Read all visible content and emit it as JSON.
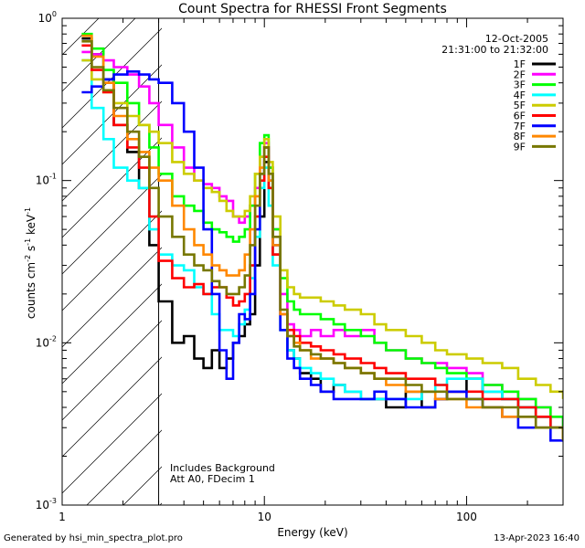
{
  "chart_data": {
    "type": "line",
    "title": "Count Spectra for RHESSI Front Segments",
    "xlabel": "Energy (keV)",
    "ylabel_parts": {
      "base": "counts cm",
      "exp1": "-2",
      "mid": " s",
      "exp2": "-1",
      "end": " keV",
      "exp3": "-1"
    },
    "xscale": "log",
    "yscale": "log",
    "xlim": [
      1,
      300
    ],
    "ylim": [
      0.001,
      1
    ],
    "x_ticks": [
      {
        "v": 1,
        "label": "1"
      },
      {
        "v": 10,
        "label": "10"
      },
      {
        "v": 100,
        "label": "100"
      }
    ],
    "y_ticks": [
      {
        "v": 1,
        "base": "10",
        "exp": "0"
      },
      {
        "v": 0.1,
        "base": "10",
        "exp": "-1"
      },
      {
        "v": 0.01,
        "base": "10",
        "exp": "-2"
      },
      {
        "v": 0.001,
        "base": "10",
        "exp": "-3"
      }
    ],
    "hatched_region_keV": [
      1,
      3
    ],
    "date": "12-Oct-2005",
    "time_range": "21:31:00 to 21:32:00",
    "annotation": [
      "Includes Background",
      "Att A0, FDecim 1"
    ],
    "legend_position": "top-right",
    "energy_keV": [
      1.25,
      1.4,
      1.6,
      1.8,
      2.1,
      2.4,
      2.7,
      3.0,
      3.5,
      4.0,
      4.5,
      5.0,
      5.5,
      6.0,
      6.5,
      7.0,
      7.5,
      8.0,
      8.5,
      9.0,
      9.5,
      10.0,
      10.5,
      11.0,
      12,
      13,
      14,
      15,
      17,
      19,
      22,
      25,
      30,
      35,
      40,
      50,
      60,
      70,
      80,
      100,
      120,
      150,
      180,
      220,
      260,
      300
    ],
    "series": [
      {
        "name": "1F",
        "color": "#000000",
        "values": [
          0.75,
          0.6,
          0.42,
          0.22,
          0.15,
          0.09,
          0.04,
          0.018,
          0.01,
          0.011,
          0.008,
          0.007,
          0.009,
          0.007,
          0.008,
          0.01,
          0.011,
          0.013,
          0.015,
          0.03,
          0.06,
          0.13,
          0.09,
          0.035,
          0.012,
          0.009,
          0.008,
          0.0065,
          0.006,
          0.005,
          0.0055,
          0.005,
          0.0045,
          0.0045,
          0.004,
          0.005,
          0.004,
          0.0045,
          0.005,
          0.006,
          0.005,
          0.0045,
          0.004,
          0.0035,
          0.003,
          0.0025
        ]
      },
      {
        "name": "2F",
        "color": "#ff00ff",
        "values": [
          0.62,
          0.6,
          0.55,
          0.5,
          0.45,
          0.38,
          0.3,
          0.22,
          0.16,
          0.12,
          0.1,
          0.095,
          0.09,
          0.08,
          0.075,
          0.06,
          0.055,
          0.06,
          0.07,
          0.09,
          0.14,
          0.17,
          0.12,
          0.05,
          0.02,
          0.013,
          0.012,
          0.011,
          0.012,
          0.011,
          0.012,
          0.011,
          0.012,
          0.01,
          0.009,
          0.008,
          0.0075,
          0.0075,
          0.007,
          0.0065,
          0.0055,
          0.005,
          0.0045,
          0.004,
          0.0035,
          0.003
        ]
      },
      {
        "name": "3F",
        "color": "#00ff00",
        "values": [
          0.8,
          0.65,
          0.48,
          0.4,
          0.3,
          0.22,
          0.16,
          0.11,
          0.08,
          0.07,
          0.065,
          0.055,
          0.05,
          0.048,
          0.045,
          0.042,
          0.045,
          0.05,
          0.07,
          0.11,
          0.17,
          0.19,
          0.12,
          0.05,
          0.025,
          0.018,
          0.016,
          0.015,
          0.015,
          0.014,
          0.013,
          0.012,
          0.011,
          0.01,
          0.009,
          0.008,
          0.0075,
          0.007,
          0.0065,
          0.006,
          0.0055,
          0.005,
          0.0045,
          0.004,
          0.0035,
          0.003
        ]
      },
      {
        "name": "4F",
        "color": "#00ffff",
        "values": [
          0.55,
          0.28,
          0.18,
          0.12,
          0.1,
          0.09,
          0.05,
          0.035,
          0.03,
          0.028,
          0.022,
          0.02,
          0.015,
          0.012,
          0.012,
          0.011,
          0.013,
          0.016,
          0.025,
          0.045,
          0.09,
          0.12,
          0.07,
          0.03,
          0.012,
          0.009,
          0.008,
          0.007,
          0.0065,
          0.006,
          0.0055,
          0.005,
          0.0045,
          0.0045,
          0.0045,
          0.0045,
          0.005,
          0.0055,
          0.006,
          0.006,
          0.005,
          0.0045,
          0.004,
          0.0035,
          0.003,
          0.0025
        ]
      },
      {
        "name": "5F",
        "color": "#cccc00",
        "values": [
          0.55,
          0.42,
          0.35,
          0.3,
          0.25,
          0.22,
          0.2,
          0.17,
          0.13,
          0.11,
          0.1,
          0.09,
          0.085,
          0.075,
          0.065,
          0.06,
          0.06,
          0.065,
          0.08,
          0.11,
          0.14,
          0.18,
          0.13,
          0.06,
          0.028,
          0.022,
          0.02,
          0.019,
          0.019,
          0.018,
          0.017,
          0.016,
          0.015,
          0.013,
          0.012,
          0.011,
          0.01,
          0.009,
          0.0085,
          0.008,
          0.0075,
          0.007,
          0.006,
          0.0055,
          0.005,
          0.0045
        ]
      },
      {
        "name": "6F",
        "color": "#ff0000",
        "values": [
          0.68,
          0.48,
          0.35,
          0.22,
          0.16,
          0.12,
          0.06,
          0.032,
          0.025,
          0.022,
          0.023,
          0.02,
          0.022,
          0.022,
          0.019,
          0.017,
          0.018,
          0.02,
          0.03,
          0.06,
          0.1,
          0.14,
          0.09,
          0.035,
          0.015,
          0.012,
          0.011,
          0.01,
          0.0095,
          0.009,
          0.0085,
          0.008,
          0.0075,
          0.007,
          0.0065,
          0.006,
          0.006,
          0.0055,
          0.005,
          0.005,
          0.0045,
          0.0045,
          0.004,
          0.0035,
          0.003,
          0.0025
        ]
      },
      {
        "name": "7F",
        "color": "#0000ff",
        "values": [
          0.35,
          0.38,
          0.42,
          0.45,
          0.47,
          0.45,
          0.42,
          0.4,
          0.3,
          0.2,
          0.12,
          0.05,
          0.02,
          0.009,
          0.006,
          0.01,
          0.015,
          0.014,
          0.02,
          0.05,
          0.11,
          0.16,
          0.1,
          0.04,
          0.012,
          0.008,
          0.007,
          0.006,
          0.0055,
          0.005,
          0.0045,
          0.0045,
          0.0045,
          0.005,
          0.0045,
          0.004,
          0.004,
          0.0045,
          0.005,
          0.0045,
          0.004,
          0.0035,
          0.003,
          0.003,
          0.0025,
          0.0025
        ]
      },
      {
        "name": "8F",
        "color": "#ff8800",
        "values": [
          0.78,
          0.58,
          0.4,
          0.25,
          0.18,
          0.15,
          0.12,
          0.1,
          0.07,
          0.05,
          0.04,
          0.035,
          0.03,
          0.028,
          0.026,
          0.026,
          0.028,
          0.035,
          0.05,
          0.08,
          0.12,
          0.16,
          0.1,
          0.04,
          0.015,
          0.011,
          0.01,
          0.009,
          0.008,
          0.008,
          0.0075,
          0.007,
          0.0065,
          0.006,
          0.0055,
          0.005,
          0.005,
          0.0045,
          0.0045,
          0.004,
          0.004,
          0.0035,
          0.0035,
          0.003,
          0.003,
          0.0025
        ]
      },
      {
        "name": "9F",
        "color": "#777700",
        "values": [
          0.72,
          0.5,
          0.36,
          0.28,
          0.2,
          0.14,
          0.09,
          0.06,
          0.045,
          0.035,
          0.03,
          0.028,
          0.024,
          0.022,
          0.02,
          0.02,
          0.022,
          0.026,
          0.04,
          0.07,
          0.11,
          0.16,
          0.11,
          0.045,
          0.016,
          0.011,
          0.0095,
          0.009,
          0.0085,
          0.008,
          0.0075,
          0.007,
          0.0065,
          0.006,
          0.006,
          0.0055,
          0.005,
          0.005,
          0.0045,
          0.0045,
          0.004,
          0.004,
          0.0035,
          0.003,
          0.003,
          0.0025
        ]
      }
    ]
  },
  "footer": {
    "left": "Generated by hsi_min_spectra_plot.pro",
    "right": "13-Apr-2023 16:40"
  }
}
